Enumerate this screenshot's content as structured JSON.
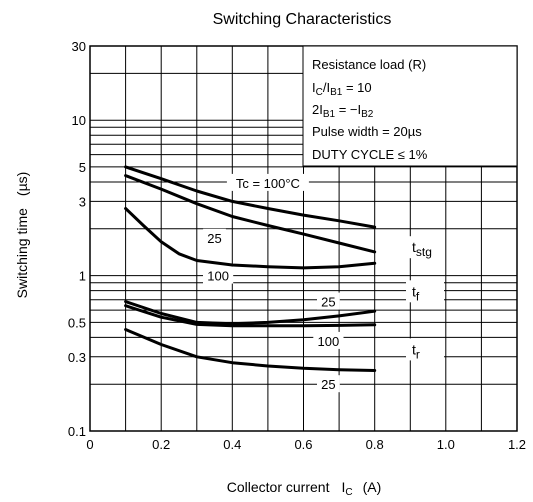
{
  "chart_data": {
    "type": "line",
    "title": "Switching Characteristics",
    "xlabel": "Collector current",
    "xlabel_symbol": "I",
    "xlabel_symbol_sub": "C",
    "xlabel_unit": "(A)",
    "ylabel": "Switching time",
    "ylabel_unit": "(µs)",
    "xlim": [
      0,
      1.2
    ],
    "ylim": [
      0.1,
      30
    ],
    "yscale": "log",
    "grid": true,
    "x_ticks": [
      0,
      0.2,
      0.4,
      0.6,
      0.8,
      1.0,
      1.2
    ],
    "x_tick_labels": [
      "0",
      "0.2",
      "0.4",
      "0.6",
      "0.8",
      "1.0",
      "1.2"
    ],
    "y_tick_labels": [
      {
        "value": 0.1,
        "label": "0.1"
      },
      {
        "value": 0.3,
        "label": "0.3"
      },
      {
        "value": 0.5,
        "label": "0.5"
      },
      {
        "value": 1,
        "label": "1"
      },
      {
        "value": 3,
        "label": "3"
      },
      {
        "value": 5,
        "label": "5"
      },
      {
        "value": 10,
        "label": "10"
      },
      {
        "value": 30,
        "label": "30"
      }
    ],
    "y_gridlines": [
      0.1,
      0.2,
      0.3,
      0.4,
      0.5,
      0.6,
      0.7,
      0.8,
      0.9,
      1,
      2,
      3,
      4,
      5,
      6,
      7,
      8,
      9,
      10,
      20,
      30
    ],
    "x_gridlines": [
      0,
      0.1,
      0.2,
      0.3,
      0.4,
      0.5,
      0.6,
      0.7,
      0.8,
      0.9,
      1.0,
      1.1,
      1.2
    ],
    "conditions": {
      "line1": "Resistance load (R)",
      "line2": {
        "a": "I",
        "a_sub": "C",
        "b": "/I",
        "b_sub": "B1",
        "c": " = 10"
      },
      "line3": {
        "a": "2I",
        "a_sub": "B1",
        "b": " = −I",
        "b_sub": "B2"
      },
      "line4": "Pulse width = 20µs",
      "line5": "DUTY CYCLE ≤ 1%"
    },
    "group_labels": [
      {
        "text": "t",
        "sub": "stg"
      },
      {
        "text": "t",
        "sub": "f"
      },
      {
        "text": "t",
        "sub": "r"
      }
    ],
    "series": [
      {
        "group": "tstg",
        "label": "Tc = 100°C",
        "x": [
          0.1,
          0.2,
          0.3,
          0.4,
          0.5,
          0.6,
          0.7,
          0.8
        ],
        "y": [
          5.0,
          4.2,
          3.5,
          3.0,
          2.7,
          2.45,
          2.25,
          2.05
        ]
      },
      {
        "group": "tstg",
        "label": "",
        "x": [
          0.1,
          0.2,
          0.3,
          0.4,
          0.5,
          0.6,
          0.7,
          0.8
        ],
        "y": [
          4.4,
          3.6,
          2.9,
          2.4,
          2.1,
          1.85,
          1.62,
          1.42
        ]
      },
      {
        "group": "tstg",
        "label": "25",
        "x": [
          0.1,
          0.15,
          0.2,
          0.25,
          0.3,
          0.4,
          0.5,
          0.6,
          0.7,
          0.8
        ],
        "y": [
          2.7,
          2.1,
          1.65,
          1.38,
          1.25,
          1.17,
          1.14,
          1.12,
          1.14,
          1.2
        ]
      },
      {
        "group": "tf",
        "label": "100",
        "x": [
          0.1,
          0.2,
          0.3,
          0.4,
          0.5,
          0.6,
          0.7,
          0.8
        ],
        "y": [
          0.68,
          0.57,
          0.5,
          0.49,
          0.5,
          0.52,
          0.55,
          0.59
        ]
      },
      {
        "group": "tf",
        "label": "25",
        "x": [
          0.1,
          0.2,
          0.3,
          0.4,
          0.5,
          0.6,
          0.7,
          0.8
        ],
        "y": [
          0.64,
          0.54,
          0.485,
          0.475,
          0.475,
          0.475,
          0.478,
          0.482
        ]
      },
      {
        "group": "tr",
        "label": "100",
        "x": [
          0.1,
          0.2,
          0.3,
          0.4,
          0.5,
          0.6,
          0.7,
          0.8
        ],
        "y": [
          0.45,
          0.36,
          0.3,
          0.275,
          0.262,
          0.253,
          0.248,
          0.245
        ]
      }
    ],
    "curve_labels": [
      {
        "text": "Tc = 100°C",
        "x": 0.5,
        "y": 3.95
      },
      {
        "text": "25",
        "x": 0.35,
        "y": 1.75
      },
      {
        "text": "100",
        "x": 0.36,
        "y": 1.0
      },
      {
        "text": "25",
        "x": 0.67,
        "y": 0.68
      },
      {
        "text": "100",
        "x": 0.67,
        "y": 0.38
      },
      {
        "text": "25",
        "x": 0.67,
        "y": 0.2
      }
    ],
    "group_label_positions": [
      {
        "x": 0.905,
        "y": 1.5
      },
      {
        "x": 0.905,
        "y": 0.78
      },
      {
        "x": 0.905,
        "y": 0.33
      }
    ]
  }
}
